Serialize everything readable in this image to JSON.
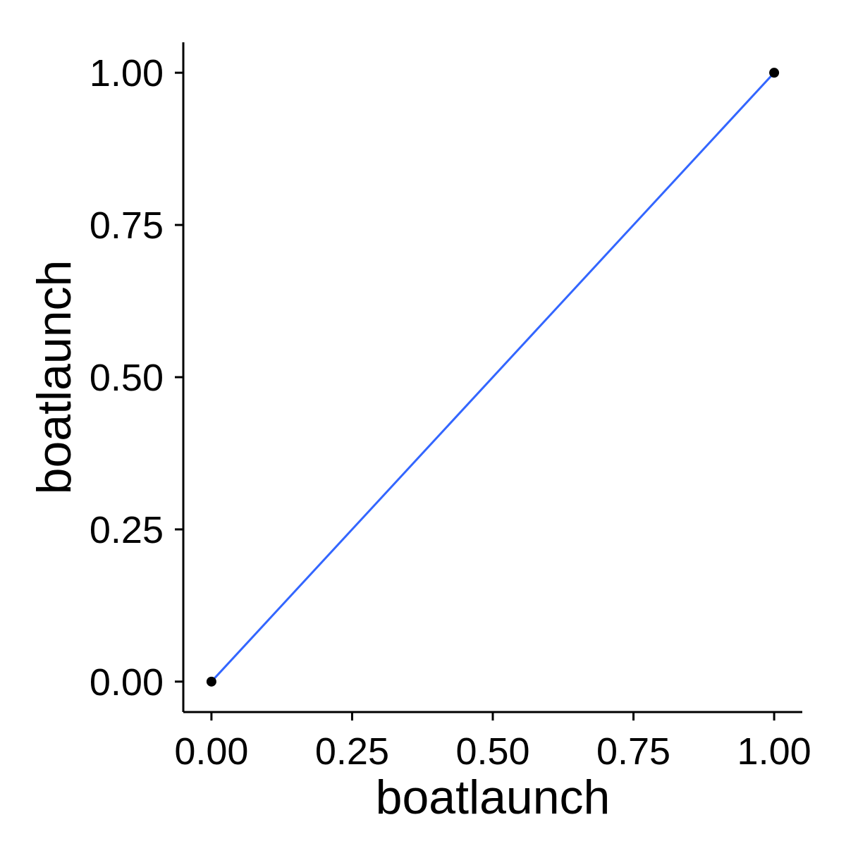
{
  "chart_data": {
    "type": "scatter",
    "title": "",
    "xlabel": "boatlaunch",
    "ylabel": "boatlaunch",
    "xlim": [
      -0.05,
      1.05
    ],
    "ylim": [
      -0.05,
      1.05
    ],
    "xticks": [
      0.0,
      0.25,
      0.5,
      0.75,
      1.0
    ],
    "xtick_labels": [
      "0.00",
      "0.25",
      "0.50",
      "0.75",
      "1.00"
    ],
    "yticks": [
      0.0,
      0.25,
      0.5,
      0.75,
      1.0
    ],
    "ytick_labels": [
      "0.00",
      "0.25",
      "0.50",
      "0.75",
      "1.00"
    ],
    "grid": false,
    "legend": "none",
    "points": [
      {
        "x": 0.0,
        "y": 0.0
      },
      {
        "x": 1.0,
        "y": 1.0
      }
    ],
    "fit_line": {
      "x": [
        0.0,
        1.0
      ],
      "y": [
        0.0,
        1.0
      ]
    },
    "colors": {
      "points": "#000000",
      "fit_line": "#3366FF",
      "axes": "#000000"
    }
  }
}
